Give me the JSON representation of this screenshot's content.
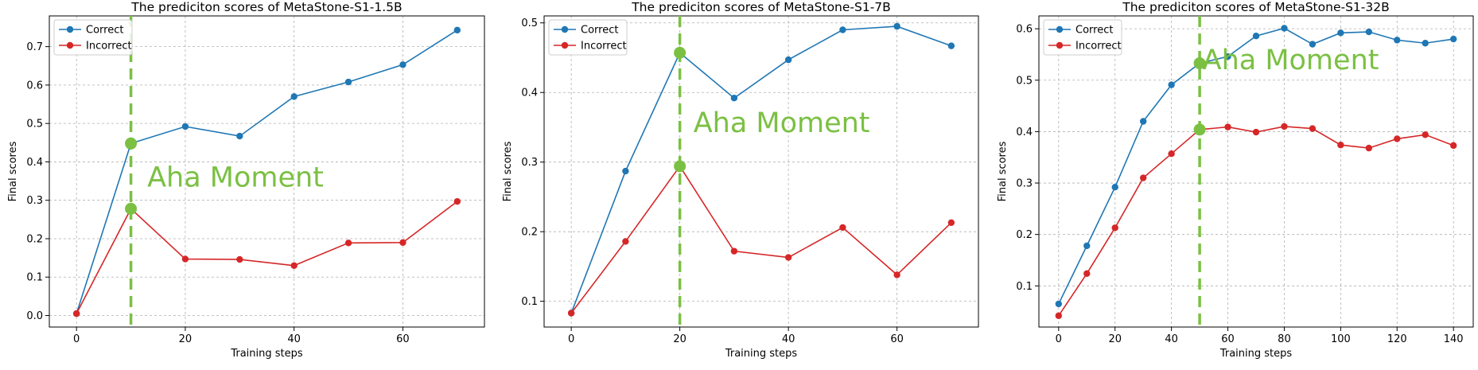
{
  "chart_data": [
    {
      "type": "line",
      "title": "The prediciton scores of MetaStone-S1-1.5B",
      "xlabel": "Training steps",
      "ylabel": "Final scores",
      "xlim": [
        -5,
        75
      ],
      "ylim": [
        -0.03,
        0.78
      ],
      "xticks": [
        0,
        20,
        40,
        60
      ],
      "yticks": [
        0.0,
        0.1,
        0.2,
        0.3,
        0.4,
        0.5,
        0.6,
        0.7
      ],
      "x": [
        0,
        10,
        20,
        30,
        40,
        50,
        60,
        70
      ],
      "series": [
        {
          "name": "Correct",
          "color": "#1f77b4",
          "values": [
            0.005,
            0.448,
            0.492,
            0.467,
            0.57,
            0.608,
            0.653,
            0.743
          ]
        },
        {
          "name": "Incorrect",
          "color": "#d62728",
          "values": [
            0.005,
            0.278,
            0.147,
            0.146,
            0.13,
            0.189,
            0.19,
            0.297
          ]
        }
      ],
      "aha": {
        "x": 10,
        "label": "Aha Moment",
        "label_x": 13,
        "label_y": 0.36,
        "points": [
          0.448,
          0.278
        ],
        "color": "#7bc043"
      },
      "legend": "upper left",
      "grid": true
    },
    {
      "type": "line",
      "title": "The prediciton scores of MetaStone-S1-7B",
      "xlabel": "Training steps",
      "ylabel": "Final scores",
      "xlim": [
        -5,
        75
      ],
      "ylim": [
        0.063,
        0.51
      ],
      "xticks": [
        0,
        20,
        40,
        60
      ],
      "yticks": [
        0.1,
        0.2,
        0.3,
        0.4,
        0.5
      ],
      "x": [
        0,
        10,
        20,
        30,
        40,
        50,
        60,
        70
      ],
      "series": [
        {
          "name": "Correct",
          "color": "#1f77b4",
          "values": [
            0.083,
            0.287,
            0.457,
            0.392,
            0.447,
            0.49,
            0.495,
            0.467
          ]
        },
        {
          "name": "Incorrect",
          "color": "#d62728",
          "values": [
            0.083,
            0.186,
            0.294,
            0.172,
            0.163,
            0.206,
            0.138,
            0.213
          ]
        }
      ],
      "aha": {
        "x": 20,
        "label": "Aha Moment",
        "label_x": 22.5,
        "label_y": 0.357,
        "points": [
          0.457,
          0.294
        ],
        "color": "#7bc043"
      },
      "legend": "upper left",
      "grid": true
    },
    {
      "type": "line",
      "title": "The prediciton scores of MetaStone-S1-32B",
      "xlabel": "Training steps",
      "ylabel": "Final scores",
      "xlim": [
        -7,
        147
      ],
      "ylim": [
        0.02,
        0.625
      ],
      "xticks": [
        0,
        20,
        40,
        60,
        80,
        100,
        120,
        140
      ],
      "yticks": [
        0.1,
        0.2,
        0.3,
        0.4,
        0.5,
        0.6
      ],
      "x": [
        0,
        10,
        20,
        30,
        40,
        50,
        60,
        70,
        80,
        90,
        100,
        110,
        120,
        130,
        140
      ],
      "series": [
        {
          "name": "Correct",
          "color": "#1f77b4",
          "values": [
            0.065,
            0.178,
            0.292,
            0.42,
            0.491,
            0.533,
            0.546,
            0.586,
            0.601,
            0.57,
            0.592,
            0.594,
            0.578,
            0.572,
            0.58
          ]
        },
        {
          "name": "Incorrect",
          "color": "#d62728",
          "values": [
            0.042,
            0.124,
            0.213,
            0.31,
            0.357,
            0.404,
            0.409,
            0.399,
            0.41,
            0.406,
            0.374,
            0.368,
            0.386,
            0.394,
            0.373
          ]
        }
      ],
      "aha": {
        "x": 50,
        "label": "Aha Moment",
        "label_x": 51,
        "label_y": 0.54,
        "points": [
          0.533,
          0.404
        ],
        "color": "#7bc043"
      },
      "legend": "upper left",
      "grid": true
    }
  ]
}
